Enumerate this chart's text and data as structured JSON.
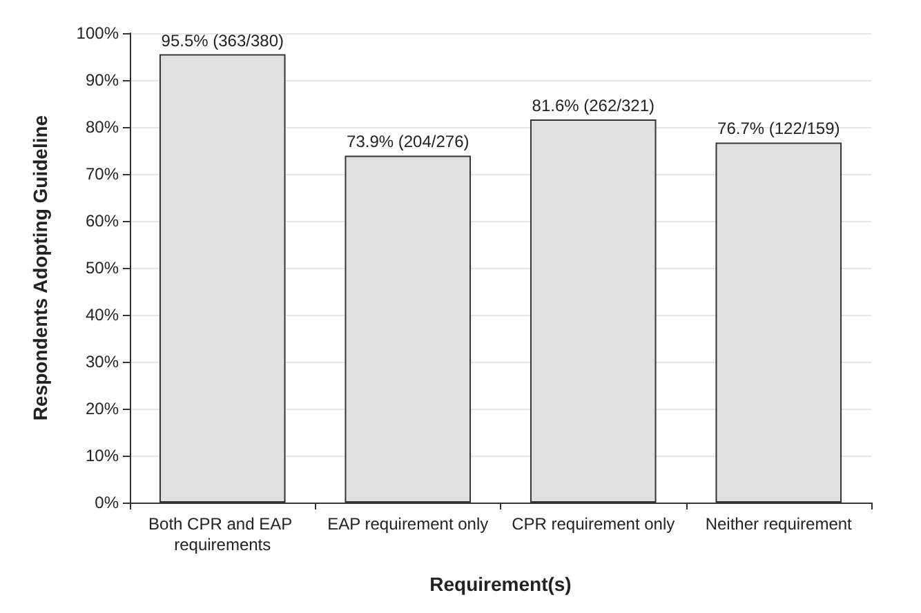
{
  "chart_data": {
    "type": "bar",
    "xlabel": "Requirement(s)",
    "ylabel": "Respondents Adopting Guideline",
    "categories": [
      "Both CPR and EAP requirements",
      "EAP requirement only",
      "CPR requirement only",
      "Neither requirement"
    ],
    "values": [
      95.5,
      73.9,
      81.6,
      76.7
    ],
    "value_labels": [
      "95.5% (363/380)",
      "73.9% (204/276)",
      "81.6% (262/321)",
      "76.7% (122/159)"
    ],
    "color": "#e0e0e0",
    "ylim": [
      0,
      100
    ],
    "yticks": [
      {
        "value": 0,
        "label": "0%"
      },
      {
        "value": 10,
        "label": "10%"
      },
      {
        "value": 20,
        "label": "20%"
      },
      {
        "value": 30,
        "label": "30%"
      },
      {
        "value": 40,
        "label": "40%"
      },
      {
        "value": 50,
        "label": "50%"
      },
      {
        "value": 60,
        "label": "60%"
      },
      {
        "value": 70,
        "label": "70%"
      },
      {
        "value": 80,
        "label": "80%"
      },
      {
        "value": 90,
        "label": "90%"
      },
      {
        "value": 100,
        "label": "100%"
      }
    ],
    "grid": "y"
  }
}
